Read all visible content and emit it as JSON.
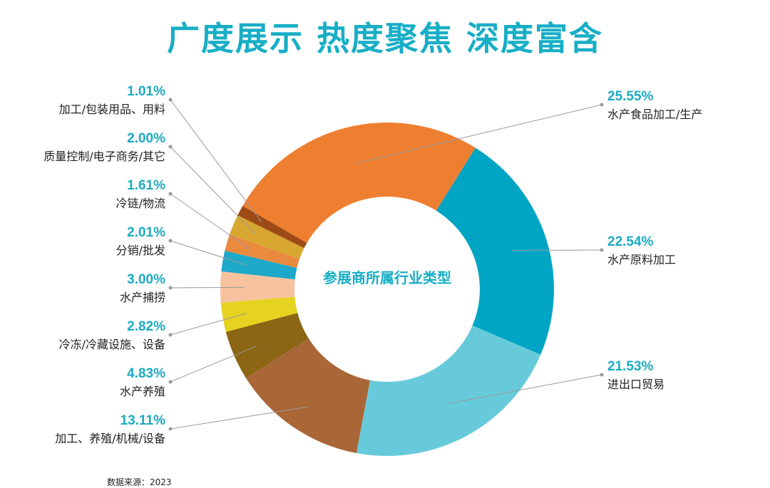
{
  "page": {
    "headline": "广度展示 热度聚焦 深度富含"
  },
  "footer": {
    "note": "数据来源：2023"
  },
  "chart_data": {
    "type": "pie",
    "center_label": "参展商所属行业类型",
    "unit": "%",
    "slices": [
      {
        "label": "水产食品加工/生产",
        "value": 25.55,
        "value_text": "25.55%",
        "color": "#ee7f31"
      },
      {
        "label": "水产原料加工",
        "value": 22.54,
        "value_text": "22.54%",
        "color": "#00a5c4"
      },
      {
        "label": "进出口贸易",
        "value": 21.53,
        "value_text": "21.53%",
        "color": "#67cadb"
      },
      {
        "label": "加工、养殖/机械/设备",
        "value": 13.11,
        "value_text": "13.11%",
        "color": "#a96637"
      },
      {
        "label": "水产养殖",
        "value": 4.83,
        "value_text": "4.83%",
        "color": "#8c6615"
      },
      {
        "label": "冷冻/冷藏设施、设备",
        "value": 2.82,
        "value_text": "2.82%",
        "color": "#e6d31f"
      },
      {
        "label": "水产捕捞",
        "value": 3.0,
        "value_text": "3.00%",
        "color": "#f8c29e"
      },
      {
        "label": "分销/批发",
        "value": 2.01,
        "value_text": "2.01%",
        "color": "#1ea8c9"
      },
      {
        "label": "冷链/物流",
        "value": 1.61,
        "value_text": "1.61%",
        "color": "#e98a3e"
      },
      {
        "label": "质量控制/电子商务/其它",
        "value": 2.0,
        "value_text": "2.00%",
        "color": "#d7a730"
      },
      {
        "label": "加工/包装用品、用料",
        "value": 1.01,
        "value_text": "1.01%",
        "color": "#9e4a16"
      }
    ],
    "legend_order_left": [
      10,
      9,
      8,
      7,
      6,
      5,
      4,
      3
    ],
    "legend_order_right": [
      0,
      1,
      2
    ]
  }
}
